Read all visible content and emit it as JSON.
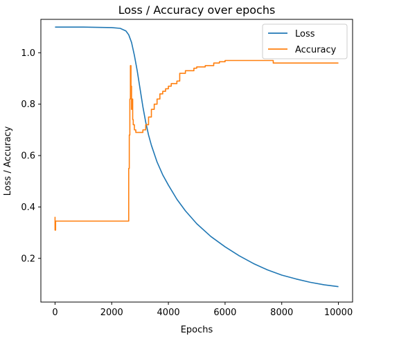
{
  "chart_data": {
    "type": "line",
    "title": "Loss / Accuracy over epochs",
    "xlabel": "Epochs",
    "ylabel": "Loss / Accuracy",
    "xlim": [
      -500,
      10500
    ],
    "ylim": [
      0.03,
      1.13
    ],
    "xticks": [
      0,
      2000,
      4000,
      6000,
      8000,
      10000
    ],
    "yticks": [
      0.2,
      0.4,
      0.6,
      0.8,
      1.0
    ],
    "ytick_labels": [
      "0.2",
      "0.4",
      "0.6",
      "0.8",
      "1.0"
    ],
    "grid": false,
    "legend_position": "top-right",
    "series": [
      {
        "name": "Loss",
        "color": "#1f77b4",
        "step": false,
        "x": [
          0,
          1000,
          2000,
          2300,
          2500,
          2600,
          2700,
          2800,
          2900,
          3000,
          3100,
          3200,
          3300,
          3400,
          3600,
          3800,
          4000,
          4300,
          4600,
          5000,
          5500,
          6000,
          6500,
          7000,
          7500,
          8000,
          8500,
          9000,
          9500,
          10000
        ],
        "values": [
          1.1,
          1.1,
          1.098,
          1.095,
          1.085,
          1.07,
          1.04,
          0.99,
          0.93,
          0.86,
          0.79,
          0.73,
          0.68,
          0.64,
          0.575,
          0.525,
          0.485,
          0.43,
          0.385,
          0.335,
          0.285,
          0.245,
          0.21,
          0.18,
          0.155,
          0.135,
          0.12,
          0.107,
          0.097,
          0.09
        ]
      },
      {
        "name": "Accuracy",
        "color": "#ff7f0e",
        "step": true,
        "x": [
          0,
          0,
          0,
          20,
          40,
          2600,
          2620,
          2640,
          2660,
          2680,
          2700,
          2720,
          2740,
          2760,
          2800,
          2850,
          2900,
          3000,
          3100,
          3200,
          3300,
          3400,
          3500,
          3600,
          3700,
          3800,
          3900,
          4000,
          4100,
          4200,
          4300,
          4400,
          4600,
          4900,
          5000,
          5300,
          5600,
          5800,
          6000,
          7700,
          8000,
          10000
        ],
        "values": [
          0.34,
          0.36,
          0.31,
          0.345,
          0.345,
          0.55,
          0.68,
          0.82,
          0.95,
          0.87,
          0.78,
          0.82,
          0.74,
          0.72,
          0.7,
          0.69,
          0.69,
          0.69,
          0.7,
          0.72,
          0.75,
          0.78,
          0.8,
          0.82,
          0.84,
          0.85,
          0.86,
          0.87,
          0.88,
          0.88,
          0.89,
          0.92,
          0.93,
          0.94,
          0.945,
          0.95,
          0.96,
          0.965,
          0.97,
          0.96,
          0.96,
          0.96
        ]
      }
    ]
  }
}
